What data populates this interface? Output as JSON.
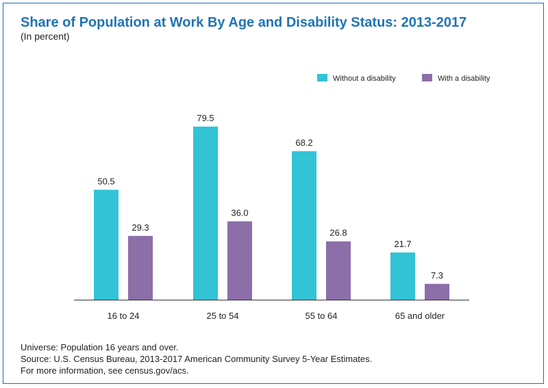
{
  "title": "Share of Population at Work By Age and Disability Status: 2013-2017",
  "subtitle": "(In percent)",
  "footer": {
    "universe": "Universe: Population 16 years and over.",
    "source": "Source: U.S. Census Bureau, 2013-2017 American Community Survey 5-Year Estimates.",
    "info": "For more information, see census.gov/acs."
  },
  "colors": {
    "without": "#33c3d6",
    "with": "#8c6ea8",
    "title": "#1f74b4",
    "frame": "#1d6fa3"
  },
  "chart_data": {
    "type": "bar",
    "title": "Share of Population at Work By Age and Disability Status: 2013-2017",
    "subtitle": "(In percent)",
    "categories": [
      "16 to 24",
      "25 to 54",
      "55 to 64",
      "65 and older"
    ],
    "series": [
      {
        "name": "Without a disability",
        "values": [
          50.5,
          79.5,
          68.2,
          21.7
        ],
        "labels": [
          "50.5",
          "79.5",
          "68.2",
          "21.7"
        ],
        "color": "#33c3d6"
      },
      {
        "name": "With a disability",
        "values": [
          29.3,
          36.0,
          26.8,
          7.3
        ],
        "labels": [
          "29.3",
          "36.0",
          "26.8",
          "7.3"
        ],
        "color": "#8c6ea8"
      }
    ],
    "ylim": [
      0,
      80
    ],
    "grid": false,
    "legend_position": "top-right",
    "xlabel": "",
    "ylabel": ""
  }
}
